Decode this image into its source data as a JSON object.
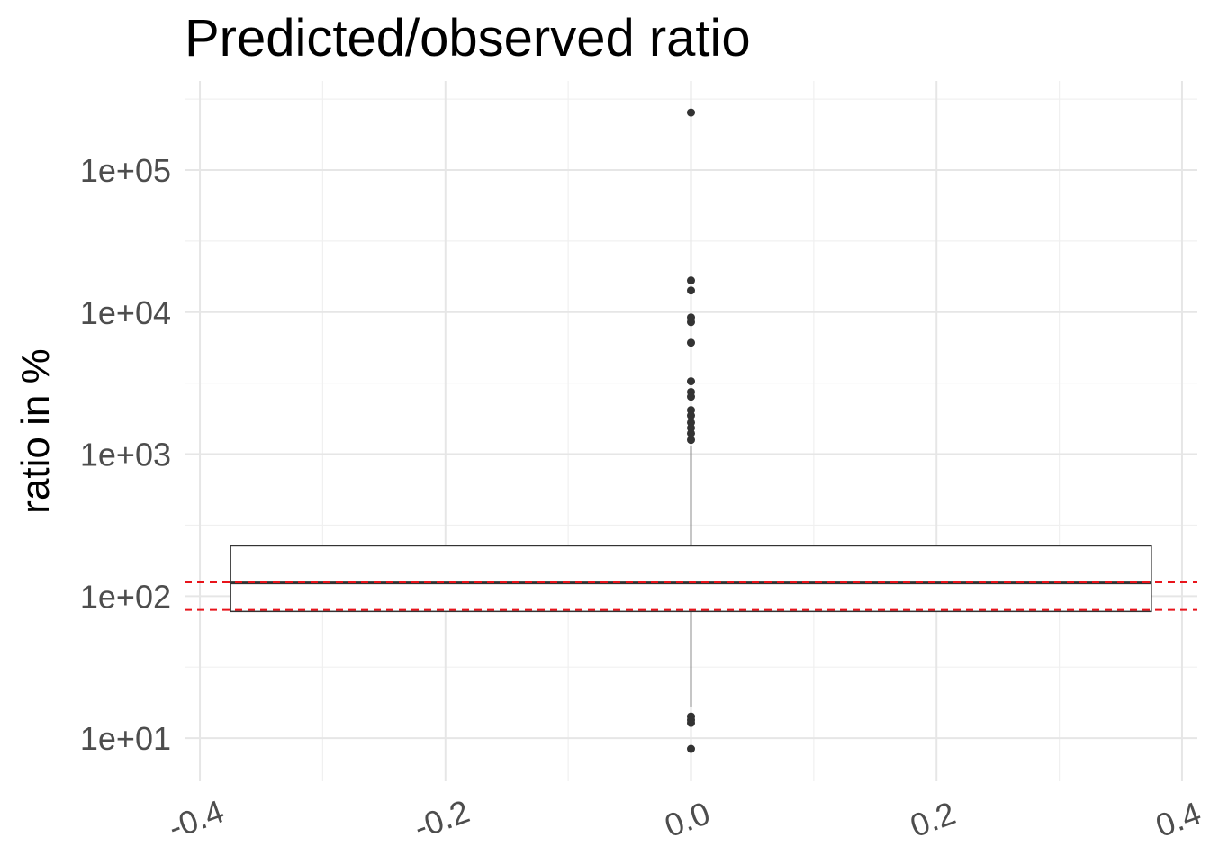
{
  "chart_data": {
    "type": "boxplot",
    "title": "Predicted/observed ratio",
    "y_label": "ratio in %",
    "xlim": [
      -0.4125,
      0.4125
    ],
    "xticks": [
      -0.4,
      -0.2,
      {
        "value": 0,
        "label": "0.0"
      },
      0.2,
      0.4
    ],
    "ylim": [
      4.97,
      424000
    ],
    "y_log": true,
    "yticks": [
      {
        "value": 10,
        "label": "1e+01"
      },
      {
        "value": 100,
        "label": "1e+02"
      },
      {
        "value": 1000,
        "label": "1e+03"
      },
      {
        "value": 10000,
        "label": "1e+04"
      },
      {
        "value": 100000,
        "label": "1e+05"
      }
    ],
    "grid": true,
    "minor_grid": true,
    "boxes": [
      {
        "x": 0,
        "width": 0.75,
        "lower_whisker": 16.7,
        "q1": 78,
        "median": 124,
        "q3": 226,
        "upper_whisker": 1140,
        "outliers": [
          254000,
          16700,
          14200,
          9170,
          8510,
          6090,
          3260,
          2740,
          2540,
          2040,
          1870,
          1670,
          1530,
          1400,
          1260,
          14.2,
          13.4,
          12.8,
          8.4
        ],
        "color": "#333333"
      }
    ],
    "reference_lines": [
      125,
      80
    ],
    "reference_color": "#e8141b"
  }
}
